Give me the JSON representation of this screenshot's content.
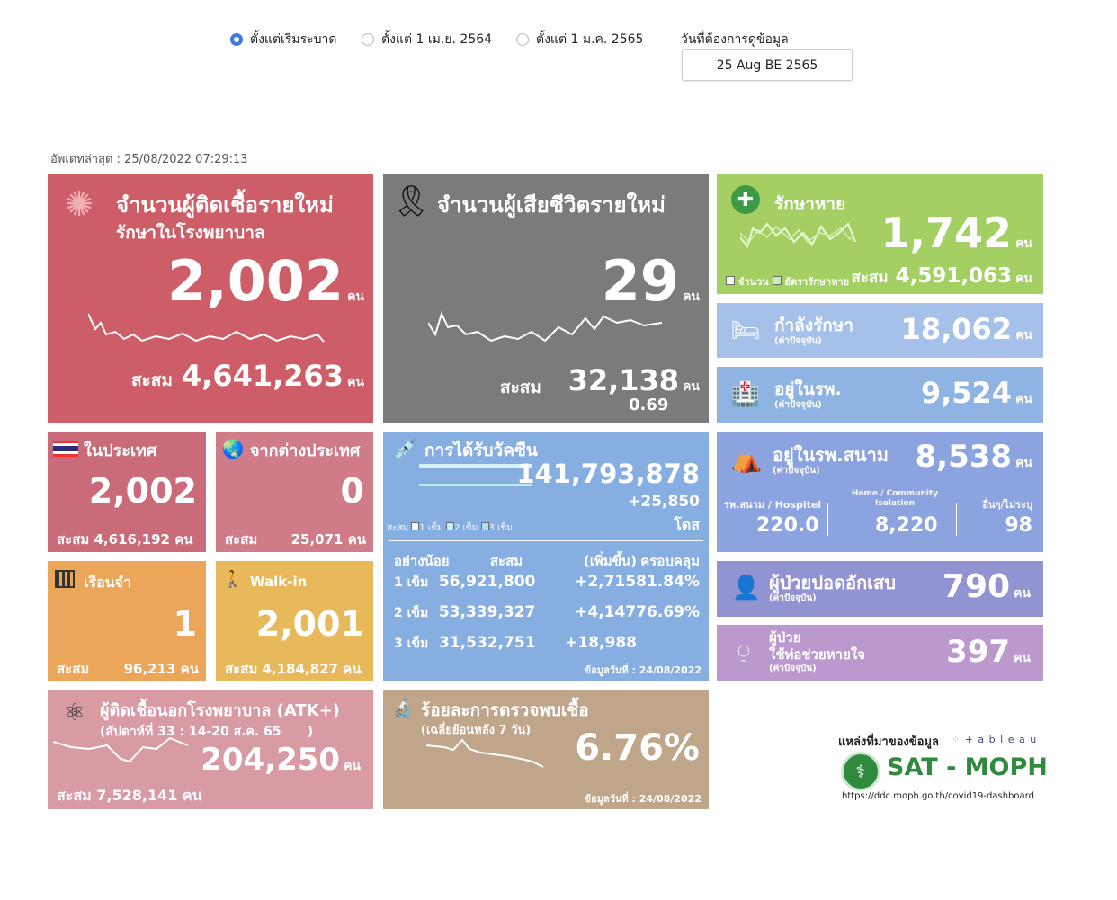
{
  "filters": {
    "options": [
      {
        "label": "ตั้งแต่เริ่มระบาด",
        "selected": true
      },
      {
        "label": "ตั้งแต่ 1 เม.ย. 2564",
        "selected": false
      },
      {
        "label": "ตั้งแต่ 1 ม.ค. 2565",
        "selected": false
      }
    ],
    "date_label": "วันที่ต้องการดูข้อมูล",
    "date_value": "25 Aug BE 2565"
  },
  "updated": "อัพเดทล่าสุด : 25/08/2022 07:29:13",
  "unit": "คน",
  "cum_label": "สะสม",
  "new_cases": {
    "title1": "จำนวนผู้ติดเชื้อรายใหม่",
    "title2": "รักษาในโรงพยาบาล",
    "value": "2,002",
    "cumulative": "4,641,263",
    "color": "#cd5d66"
  },
  "deaths": {
    "title": "จำนวนผู้เสียชีวิตรายใหม่",
    "value": "29",
    "cumulative": "32,138",
    "rate": "0.69",
    "color": "#7b7b7b"
  },
  "recovered": {
    "title": "รักษาหาย",
    "value": "1,742",
    "cumulative": "4,591,063",
    "legend1": "จำนวน",
    "legend2": "อัตรารักษาหาย",
    "color": "#a3cf63"
  },
  "treating": {
    "title": "กำลังรักษา",
    "sub": "(ค่าปัจจุบัน)",
    "value": "18,062",
    "color": "#a5c1ea"
  },
  "in_hospital": {
    "title": "อยู่ในรพ.",
    "sub": "(ค่าปัจจุบัน)",
    "value": "9,524",
    "color": "#8fb3e3"
  },
  "domestic": {
    "title": "ในประเทศ",
    "value": "2,002",
    "cumulative": "4,616,192",
    "color": "#c96b79"
  },
  "abroad": {
    "title": "จากต่างประเทศ",
    "value": "0",
    "cumulative": "25,071",
    "color": "#d07b88"
  },
  "prison": {
    "title": "เรือนจำ",
    "value": "1",
    "cumulative": "96,213",
    "color": "#eca65a"
  },
  "walkin": {
    "title": "Walk-in",
    "value": "2,001",
    "cumulative": "4,184,827",
    "color": "#e8b95b"
  },
  "vaccine": {
    "title": "การได้รับวัคซีน",
    "total": "141,793,878",
    "increase": "+25,850",
    "dose_unit": "โดส",
    "legend": [
      "สะสม",
      "1 เข็ม",
      "2 เข็ม",
      "3 เข็ม"
    ],
    "headers": [
      "อย่างน้อย",
      "สะสม",
      "(เพิ่มขึ้น)",
      "ครอบคลุม"
    ],
    "rows": [
      {
        "dose": "1 เข็ม",
        "cumulative": "56,921,800",
        "increase": "+2,715",
        "coverage": "81.84%"
      },
      {
        "dose": "2 เข็ม",
        "cumulative": "53,339,327",
        "increase": "+4,147",
        "coverage": "76.69%"
      },
      {
        "dose": "3 เข็ม",
        "cumulative": "31,532,751",
        "increase": "+18,988",
        "coverage": ""
      }
    ],
    "data_date": "ข้อมูลวันที่ : 24/08/2022",
    "color": "#86aee1"
  },
  "field_hospital": {
    "title": "อยู่ในรพ.สนาม",
    "sub": "(ค่าปัจจุบัน)",
    "value": "8,538",
    "cols": [
      {
        "label": "รพ.สนาม / Hospitel",
        "value": "220.0"
      },
      {
        "label": "Home / Community Isolation",
        "value": "8,220"
      },
      {
        "label": "อื่นๆ/ไม่ระบุ",
        "value": "98"
      }
    ],
    "color": "#8ba3de"
  },
  "pneumonia": {
    "title": "ผู้ป่วยปอดอักเสบ",
    "sub": "(ค่าปัจจุบัน)",
    "value": "790",
    "color": "#9294d1"
  },
  "ventilator": {
    "title1": "ผู้ป่วย",
    "title2": "ใช้ท่อช่วยหายใจ",
    "sub": "(ค่าปัจจุบัน)",
    "value": "397",
    "color": "#bb98cd"
  },
  "atk": {
    "title": "ผู้ติดเชื้อนอกโรงพยาบาล (ATK+)",
    "week": "(สัปดาห์ที่ 33 : 14-20 ส.ค. 65      )",
    "value": "204,250",
    "cumulative": "7,528,141",
    "color": "#d89aa3"
  },
  "positivity": {
    "title": "ร้อยละการตรวจพบเชื้อ",
    "sub": "(เฉลี่ยย้อนหลัง 7 วัน)",
    "value": "6.76%",
    "data_date": "ข้อมูลวันที่ : 24/08/2022",
    "color": "#bfa589"
  },
  "source": {
    "label": "แหล่งที่มาของข้อมูล",
    "tableau": "+ a b l e a u",
    "logo_text": "SAT - MOPH",
    "url": "https://ddc.moph.go.th/covid19-dashboard"
  }
}
